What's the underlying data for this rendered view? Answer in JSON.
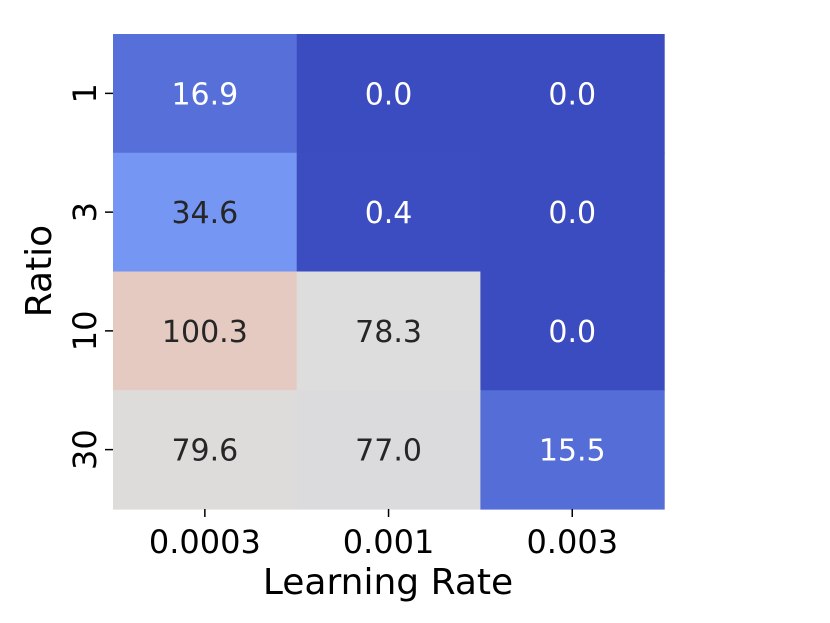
{
  "chart_data": {
    "type": "heatmap",
    "xlabel": "Learning Rate",
    "ylabel": "Ratio",
    "x_categories": [
      "0.0003",
      "0.001",
      "0.003"
    ],
    "y_categories": [
      "1",
      "3",
      "10",
      "30"
    ],
    "values": [
      [
        16.9,
        0.0,
        0.0
      ],
      [
        34.6,
        0.4,
        0.0
      ],
      [
        100.3,
        78.3,
        0.0
      ],
      [
        79.6,
        77.0,
        15.5
      ]
    ],
    "value_labels": [
      [
        "16.9",
        "0.0",
        "0.0"
      ],
      [
        "34.6",
        "0.4",
        "0.0"
      ],
      [
        "100.3",
        "78.3",
        "0.0"
      ],
      [
        "79.6",
        "77.0",
        "15.5"
      ]
    ],
    "colormap": "coolwarm",
    "color_center": 78,
    "grid": false,
    "colorbar": false
  }
}
